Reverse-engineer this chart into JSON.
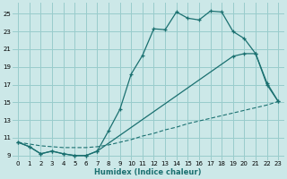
{
  "bg_color": "#cce8e8",
  "grid_color": "#99cccc",
  "line_color": "#1a7070",
  "xlabel": "Humidex (Indice chaleur)",
  "xlim": [
    -0.5,
    23.5
  ],
  "ylim": [
    8.5,
    26.2
  ],
  "xticks": [
    0,
    1,
    2,
    3,
    4,
    5,
    6,
    7,
    8,
    9,
    10,
    11,
    12,
    13,
    14,
    15,
    16,
    17,
    18,
    19,
    20,
    21,
    22,
    23
  ],
  "yticks": [
    9,
    11,
    13,
    15,
    17,
    19,
    21,
    23,
    25
  ],
  "line1_x": [
    0,
    1,
    2,
    3,
    4,
    5,
    6,
    7,
    8,
    9,
    10,
    11,
    12,
    13,
    14,
    15,
    16,
    17,
    18,
    19,
    20,
    21,
    22,
    23
  ],
  "line1_y": [
    10.5,
    10.0,
    9.2,
    9.5,
    9.2,
    9.0,
    9.0,
    9.5,
    11.8,
    14.2,
    18.2,
    20.3,
    23.3,
    23.2,
    25.2,
    24.5,
    24.3,
    25.3,
    25.2,
    23.0,
    22.2,
    20.5,
    17.0,
    15.1
  ],
  "line2_x": [
    0,
    1,
    2,
    3,
    4,
    5,
    6,
    7,
    19,
    20,
    21,
    22,
    23
  ],
  "line2_y": [
    10.5,
    10.0,
    9.2,
    9.5,
    9.2,
    9.0,
    9.0,
    9.5,
    20.2,
    20.5,
    20.5,
    17.2,
    15.1
  ],
  "line3_x": [
    0,
    1,
    2,
    3,
    4,
    5,
    6,
    7,
    8,
    9,
    10,
    11,
    12,
    13,
    14,
    15,
    16,
    17,
    18,
    19,
    20,
    21,
    22,
    23
  ],
  "line3_y": [
    10.5,
    10.3,
    10.1,
    10.0,
    9.9,
    9.9,
    9.9,
    10.0,
    10.2,
    10.5,
    10.8,
    11.2,
    11.5,
    11.9,
    12.2,
    12.6,
    12.9,
    13.2,
    13.5,
    13.8,
    14.1,
    14.4,
    14.7,
    15.1
  ]
}
